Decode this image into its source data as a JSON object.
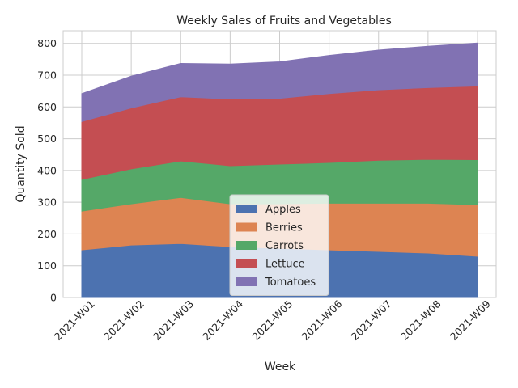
{
  "chart_data": {
    "type": "area",
    "stacked": true,
    "title": "Weekly Sales of Fruits and Vegetables",
    "xlabel": "Week",
    "ylabel": "Quantity Sold",
    "x": [
      "2021-W01",
      "2021-W02",
      "2021-W03",
      "2021-W04",
      "2021-W05",
      "2021-W06",
      "2021-W07",
      "2021-W08",
      "2021-W09"
    ],
    "ylim": [
      0,
      840
    ],
    "yticks": [
      0,
      100,
      200,
      300,
      400,
      500,
      600,
      700,
      800
    ],
    "grid": true,
    "legend_position": "lower center",
    "series": [
      {
        "name": "Apples",
        "color": "#4c72b0",
        "values": [
          150,
          165,
          170,
          160,
          155,
          150,
          145,
          140,
          130
        ]
      },
      {
        "name": "Berries",
        "color": "#dd8452",
        "values": [
          122,
          130,
          145,
          135,
          140,
          147,
          152,
          157,
          162
        ]
      },
      {
        "name": "Carrots",
        "color": "#55a868",
        "values": [
          100,
          110,
          115,
          120,
          125,
          128,
          135,
          138,
          142
        ]
      },
      {
        "name": "Lettuce",
        "color": "#c44e52",
        "values": [
          182,
          192,
          202,
          210,
          207,
          217,
          222,
          226,
          232
        ]
      },
      {
        "name": "Tomatoes",
        "color": "#8172b3",
        "values": [
          88,
          100,
          105,
          110,
          115,
          120,
          125,
          130,
          135
        ]
      }
    ]
  }
}
